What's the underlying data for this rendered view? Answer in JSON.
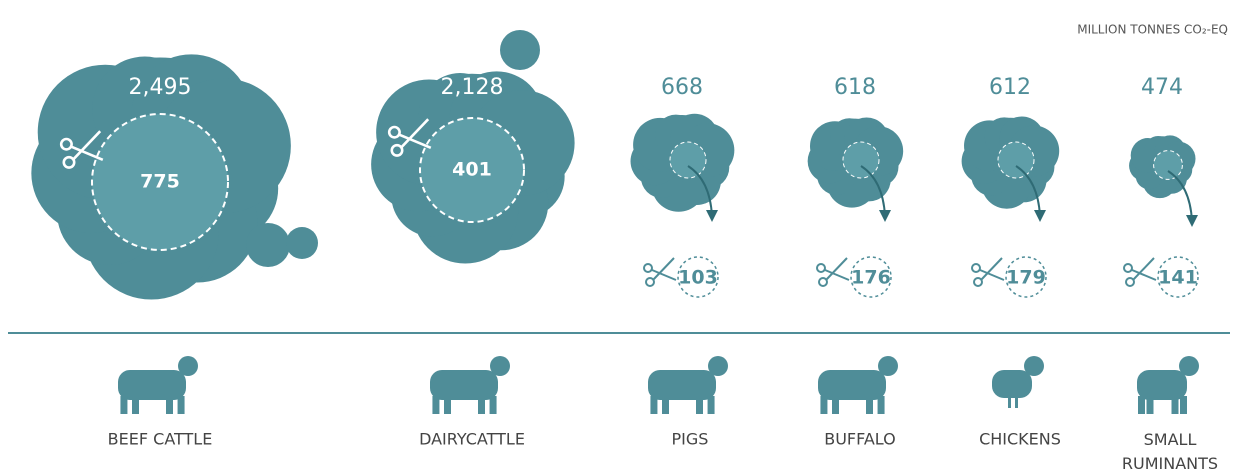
{
  "unit": "MILLION TONNES CO₂-EQ",
  "items": [
    {
      "label": "BEEF CATTLE",
      "total": "2,495",
      "reduction": "775"
    },
    {
      "label": "DAIRYCATTLE",
      "total": "2,128",
      "reduction": "401"
    },
    {
      "label": "PIGS",
      "total": "668",
      "reduction": "103"
    },
    {
      "label": "BUFFALO",
      "total": "618",
      "reduction": "176"
    },
    {
      "label": "CHICKENS",
      "total": "612",
      "reduction": "179"
    },
    {
      "label": "SMALL RUMINANTS",
      "total": "474",
      "reduction": "141"
    }
  ]
}
